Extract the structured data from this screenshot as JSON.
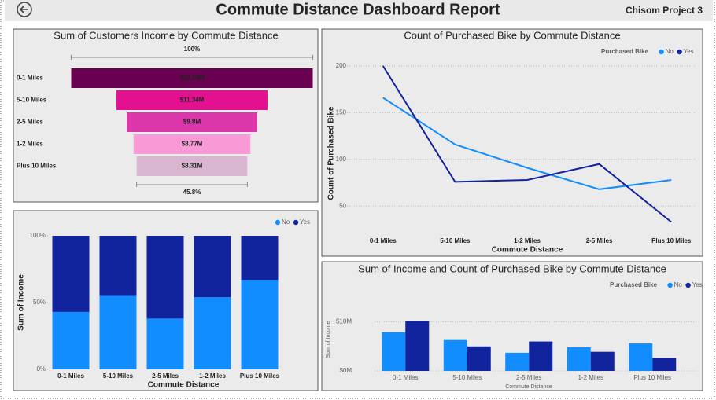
{
  "header": {
    "title": "Commute Distance Dashboard Report",
    "project": "Chisom Project 3"
  },
  "chart_data": [
    {
      "type": "funnel",
      "title": "Sum of Customers Income by Commute Distance",
      "categories": [
        "0-1 Miles",
        "5-10 Miles",
        "2-5 Miles",
        "1-2 Miles",
        "Plus 10 Miles"
      ],
      "values": [
        18.14,
        11.34,
        9.8,
        8.77,
        8.31
      ],
      "value_labels": [
        "$18.14M",
        "$11.34M",
        "$9.8M",
        "$8.77M",
        "$8.31M"
      ],
      "colors": [
        "#6a0050",
        "#e3118f",
        "#db36aa",
        "#f79ad6",
        "#d8b6cf"
      ],
      "annotations": [
        "100%",
        "45.8%"
      ]
    },
    {
      "type": "bar",
      "stacked": true,
      "categories": [
        "0-1 Miles",
        "5-10 Miles",
        "2-5 Miles",
        "1-2 Miles",
        "Plus 10 Miles"
      ],
      "series": [
        {
          "name": "No",
          "color": "#118dff",
          "values": [
            43,
            55,
            38,
            54,
            67
          ]
        },
        {
          "name": "Yes",
          "color": "#12239e",
          "values": [
            57,
            45,
            62,
            46,
            33
          ]
        }
      ],
      "ylim": [
        0,
        100
      ],
      "yticks": [
        {
          "value": 0,
          "label": "0%"
        },
        {
          "value": 50,
          "label": "50%"
        },
        {
          "value": 100,
          "label": "100%"
        }
      ],
      "y_label": "Sum of Income",
      "x_label": "Commute Distance",
      "grid": false
    },
    {
      "type": "line",
      "title": "Count of Purchased Bike by Commute Distance",
      "legend_title": "Purchased Bike",
      "categories": [
        "0-1 Miles",
        "5-10 Miles",
        "1-2 Miles",
        "2-5 Miles",
        "Plus 10 Miles"
      ],
      "series": [
        {
          "name": "No",
          "color": "#118dff",
          "values": [
            166,
            116,
            91,
            68,
            78
          ]
        },
        {
          "name": "Yes",
          "color": "#12239e",
          "values": [
            200,
            76,
            78,
            95,
            33
          ]
        }
      ],
      "ylim": [
        25,
        210
      ],
      "yticks": [
        50,
        100,
        150,
        200
      ],
      "y_label": "Count of Purchased Bike",
      "x_label": "Commute Distance",
      "grid": true
    },
    {
      "type": "bar",
      "stacked": false,
      "title": "Sum of Income and Count of Purchased Bike by Commute Distance",
      "legend_title": "Purchased Bike",
      "categories": [
        "0-1 Miles",
        "5-10 Miles",
        "2-5 Miles",
        "1-2 Miles",
        "Plus 10 Miles"
      ],
      "series": [
        {
          "name": "No",
          "color": "#118dff",
          "values": [
            7.9,
            6.3,
            3.7,
            4.8,
            5.6
          ]
        },
        {
          "name": "Yes",
          "color": "#12239e",
          "values": [
            10.2,
            5.0,
            6.0,
            3.9,
            2.6
          ]
        }
      ],
      "ylim": [
        0,
        12.5
      ],
      "yticks": [
        {
          "value": 0,
          "label": "$0M"
        },
        {
          "value": 10,
          "label": "$10M"
        }
      ],
      "y_label": "Sum of Income",
      "x_label": "Commute Distance",
      "grid": true
    }
  ]
}
